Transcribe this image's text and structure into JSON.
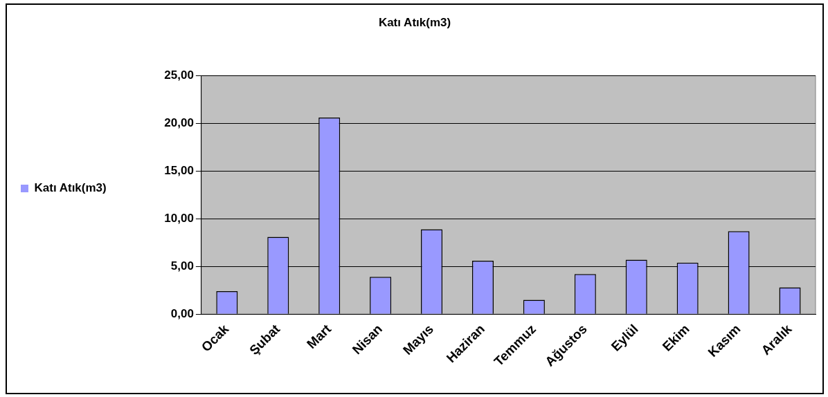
{
  "chart_data": {
    "type": "bar",
    "title": "Katı Atık(m3)",
    "categories": [
      "Ocak",
      "Şubat",
      "Mart",
      "Nisan",
      "Mayıs",
      "Haziran",
      "Temmuz",
      "Ağustos",
      "Eylül",
      "Ekim",
      "Kasım",
      "Aralık"
    ],
    "series": [
      {
        "name": "Katı Atık(m3)",
        "color": "#9999ff",
        "values": [
          2.4,
          8.1,
          20.6,
          3.9,
          8.9,
          5.6,
          1.5,
          4.2,
          5.7,
          5.4,
          8.7,
          2.8
        ]
      }
    ],
    "ylim": [
      0,
      25
    ],
    "yticks": [
      {
        "value": 0,
        "label": "0,00"
      },
      {
        "value": 5,
        "label": "5,00"
      },
      {
        "value": 10,
        "label": "10,00"
      },
      {
        "value": 15,
        "label": "15,00"
      },
      {
        "value": 20,
        "label": "20,00"
      },
      {
        "value": 25,
        "label": "25,00"
      }
    ],
    "grid": "y",
    "legend": "left"
  }
}
